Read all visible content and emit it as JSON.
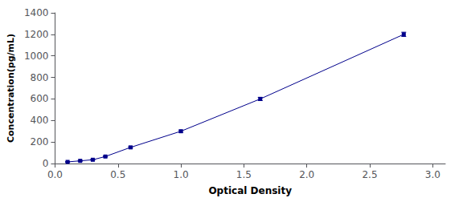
{
  "chart_data": {
    "type": "line",
    "xlabel": "Optical Density",
    "ylabel": "Concentration(pg/mL)",
    "x": [
      0.1,
      0.2,
      0.3,
      0.4,
      0.6,
      1.0,
      1.63,
      2.77
    ],
    "values": [
      15,
      25,
      35,
      65,
      150,
      300,
      600,
      1200
    ],
    "yerr": [
      4,
      4,
      4,
      5,
      7,
      10,
      15,
      20
    ],
    "color": "#00008B",
    "marker": "square",
    "xlim": [
      0,
      3.1
    ],
    "ylim": [
      0,
      1400
    ],
    "xticks": [
      {
        "value": 0,
        "label": "0.0"
      },
      0.5,
      {
        "value": 1,
        "label": "1.0"
      },
      1.5,
      {
        "value": 2,
        "label": "2.0"
      },
      2.5,
      {
        "value": 3,
        "label": "3.0"
      }
    ],
    "yticks": [
      0,
      200,
      400,
      600,
      800,
      1000,
      1200,
      1400
    ],
    "grid": false
  }
}
